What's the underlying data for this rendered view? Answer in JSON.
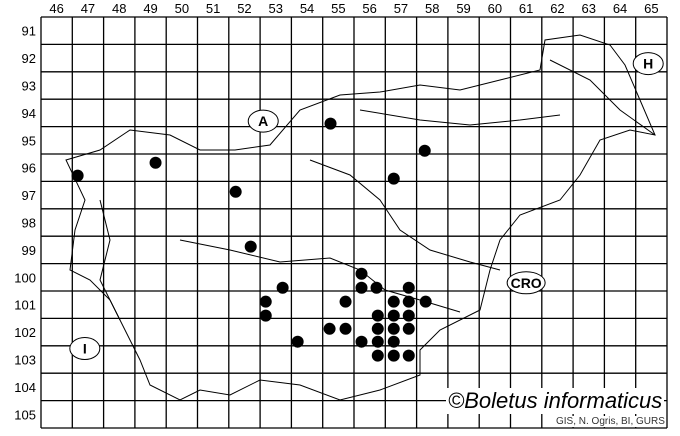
{
  "map": {
    "columns": [
      "46",
      "47",
      "48",
      "49",
      "50",
      "51",
      "52",
      "53",
      "54",
      "55",
      "56",
      "57",
      "58",
      "59",
      "60",
      "61",
      "62",
      "63",
      "64",
      "65"
    ],
    "rows": [
      "91",
      "92",
      "93",
      "94",
      "95",
      "96",
      "97",
      "98",
      "99",
      "100",
      "101",
      "102",
      "103",
      "104",
      "105"
    ],
    "country_labels": [
      {
        "text": "A",
        "col": 52.6,
        "row": 94.3
      },
      {
        "text": "H",
        "col": 64.9,
        "row": 92.2
      },
      {
        "text": "CRO",
        "col": 61.0,
        "row": 100.2
      },
      {
        "text": "I",
        "col": 46.9,
        "row": 102.6
      }
    ],
    "records": [
      [
        46.67,
        96.29
      ],
      [
        49.16,
        95.82
      ],
      [
        54.75,
        94.39
      ],
      [
        57.76,
        95.38
      ],
      [
        56.77,
        96.4
      ],
      [
        51.72,
        96.88
      ],
      [
        52.2,
        98.88
      ],
      [
        53.22,
        100.38
      ],
      [
        52.68,
        100.89
      ],
      [
        52.68,
        101.4
      ],
      [
        53.7,
        102.35
      ],
      [
        55.74,
        99.87
      ],
      [
        55.74,
        100.38
      ],
      [
        56.22,
        100.38
      ],
      [
        57.25,
        100.38
      ],
      [
        55.23,
        100.89
      ],
      [
        56.77,
        100.89
      ],
      [
        57.25,
        100.89
      ],
      [
        57.79,
        100.89
      ],
      [
        56.26,
        101.4
      ],
      [
        56.77,
        101.4
      ],
      [
        57.25,
        101.4
      ],
      [
        54.72,
        101.88
      ],
      [
        55.23,
        101.88
      ],
      [
        56.26,
        101.88
      ],
      [
        56.77,
        101.88
      ],
      [
        57.25,
        101.88
      ],
      [
        55.74,
        102.35
      ],
      [
        56.26,
        102.35
      ],
      [
        56.77,
        102.35
      ],
      [
        56.26,
        102.86
      ],
      [
        56.77,
        102.86
      ],
      [
        57.25,
        102.86
      ]
    ],
    "dot_color": "#000000",
    "credit": "©Boletus informaticus",
    "source": "GIS, N. Ogris, BI, GURS"
  }
}
